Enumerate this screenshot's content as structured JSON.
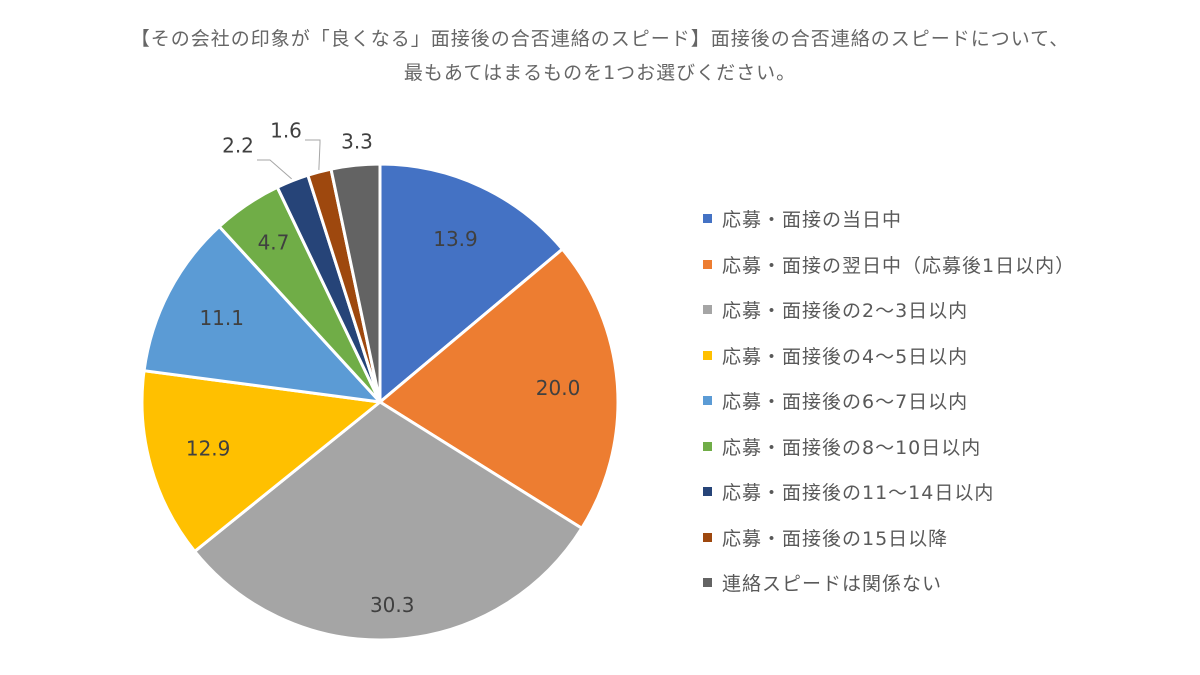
{
  "title": {
    "line1": "【その会社の印象が「良くなる」面接後の合否連絡のスピード】面接後の合否連絡のスピードについて、",
    "line2": "最もあてはまるものを1つお選びください。"
  },
  "chart_data": {
    "type": "pie",
    "title": "【その会社の印象が「良くなる」面接後の合否連絡のスピード】面接後の合否連絡のスピードについて、最もあてはまるものを1つお選びください。",
    "start_angle": "12 o'clock",
    "direction": "clockwise",
    "legend_position": "right",
    "slices": [
      {
        "label": "応募・面接の当日中",
        "value": 13.9,
        "display": "13.9",
        "color": "#4472C4"
      },
      {
        "label": "応募・面接の翌日中（応募後1日以内）",
        "value": 20.0,
        "display": "20.0",
        "color": "#ED7D31"
      },
      {
        "label": "応募・面接後の2〜3日以内",
        "value": 30.3,
        "display": "30.3",
        "color": "#A5A5A5"
      },
      {
        "label": "応募・面接後の4〜5日以内",
        "value": 12.9,
        "display": "12.9",
        "color": "#FFC000"
      },
      {
        "label": "応募・面接後の6〜7日以内",
        "value": 11.1,
        "display": "11.1",
        "color": "#5B9BD5"
      },
      {
        "label": "応募・面接後の8〜10日以内",
        "value": 4.7,
        "display": "4.7",
        "color": "#70AD47"
      },
      {
        "label": "応募・面接後の11〜14日以内",
        "value": 2.2,
        "display": "2.2",
        "color": "#264478"
      },
      {
        "label": "応募・面接後の15日以降",
        "value": 1.6,
        "display": "1.6",
        "color": "#9E480E"
      },
      {
        "label": "連絡スピードは関係ない",
        "value": 3.3,
        "display": "3.3",
        "color": "#636363"
      }
    ]
  }
}
